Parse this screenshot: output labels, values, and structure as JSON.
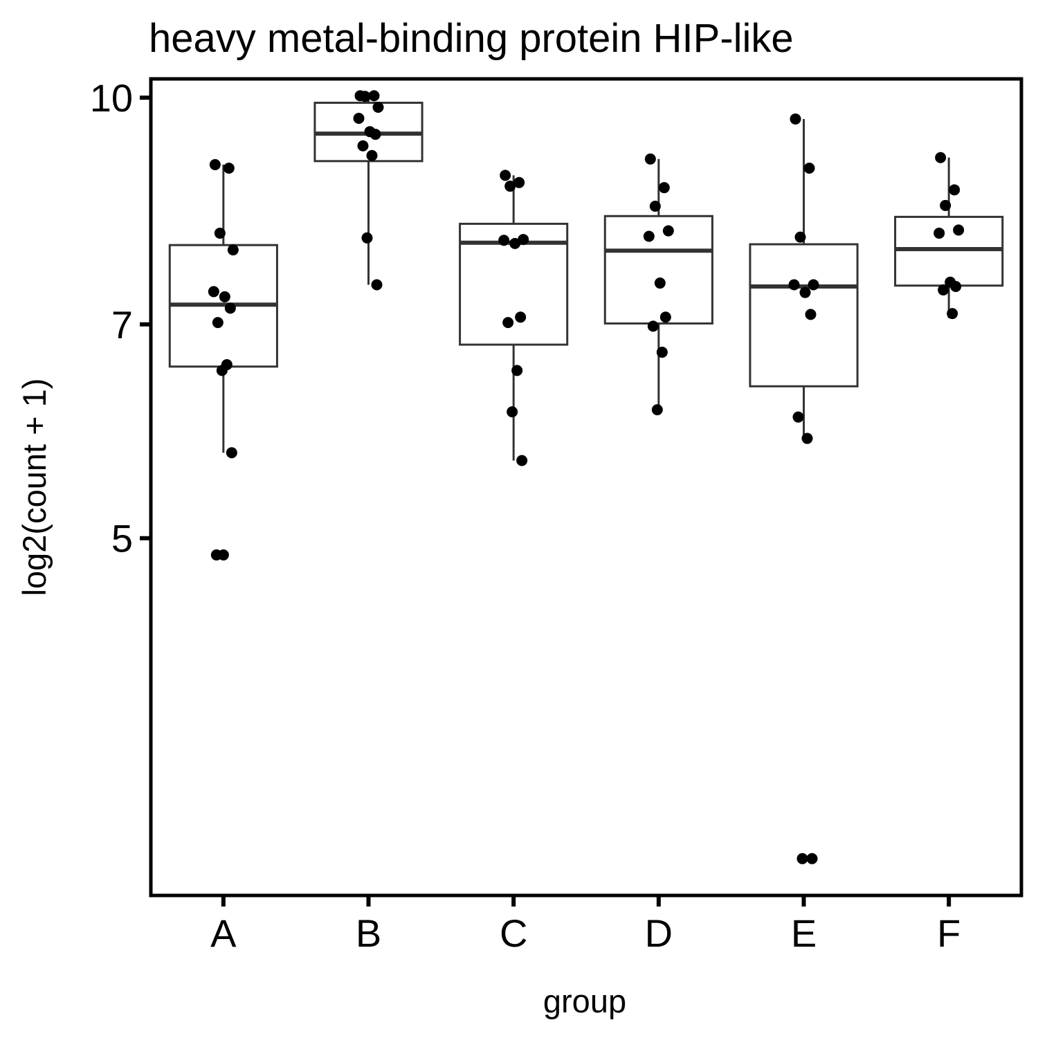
{
  "chart_data": {
    "type": "box",
    "title": "heavy metal-binding protein HIP-like",
    "xlabel": "group",
    "ylabel": "log2(count + 1)",
    "y_scale": "log",
    "yticks": [
      5,
      7,
      10
    ],
    "ylim": [
      2.85,
      10.3
    ],
    "grid": false,
    "categories": [
      "A",
      "B",
      "C",
      "D",
      "E",
      "F"
    ],
    "boxes": [
      {
        "group": "A",
        "q1": 6.55,
        "median": 7.22,
        "q3": 7.93,
        "whisker_low": 5.72,
        "whisker_high": 9.0
      },
      {
        "group": "B",
        "q1": 9.05,
        "median": 9.45,
        "q3": 9.92,
        "whisker_low": 7.45,
        "whisker_high": 10.03
      },
      {
        "group": "C",
        "q1": 6.78,
        "median": 7.96,
        "q3": 8.2,
        "whisker_low": 5.65,
        "whisker_high": 8.85
      },
      {
        "group": "D",
        "q1": 7.01,
        "median": 7.86,
        "q3": 8.3,
        "whisker_low": 6.12,
        "whisker_high": 9.08
      },
      {
        "group": "E",
        "q1": 6.35,
        "median": 7.43,
        "q3": 7.94,
        "whisker_low": 5.85,
        "whisker_high": 9.67
      },
      {
        "group": "F",
        "q1": 7.44,
        "median": 7.88,
        "q3": 8.29,
        "whisker_low": 7.07,
        "whisker_high": 9.1
      }
    ],
    "points": [
      {
        "group": "A",
        "values": [
          9.0,
          8.95,
          8.08,
          7.87,
          7.37,
          7.31,
          7.18,
          7.02,
          6.57,
          6.51,
          5.72,
          4.87,
          4.87
        ]
      },
      {
        "group": "B",
        "values": [
          10.03,
          10.03,
          10.02,
          9.85,
          9.68,
          9.48,
          9.44,
          9.27,
          9.13,
          8.02,
          7.45
        ]
      },
      {
        "group": "C",
        "values": [
          8.85,
          8.75,
          8.7,
          8.0,
          7.99,
          7.95,
          7.08,
          7.02,
          6.51,
          6.1,
          5.65
        ]
      },
      {
        "group": "D",
        "values": [
          9.08,
          8.68,
          8.43,
          8.11,
          8.04,
          7.47,
          7.08,
          6.98,
          6.7,
          6.12
        ]
      },
      {
        "group": "E",
        "values": [
          9.67,
          8.95,
          8.03,
          7.45,
          7.45,
          7.36,
          7.11,
          6.05,
          5.85,
          3.02,
          3.02
        ]
      },
      {
        "group": "F",
        "values": [
          9.1,
          8.65,
          8.44,
          8.12,
          8.08,
          7.48,
          7.43,
          7.39,
          7.12
        ]
      }
    ]
  }
}
